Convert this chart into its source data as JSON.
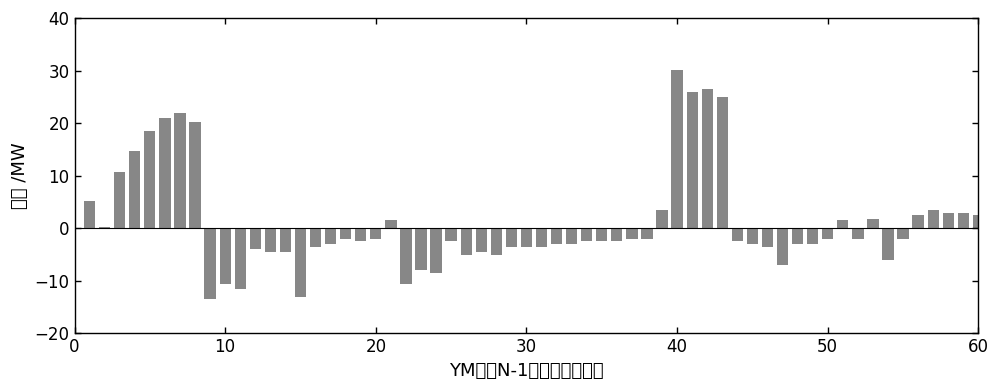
{
  "bar_color": "#878787",
  "xlabel": "YM单线N-1的热稳定临界点",
  "ylabel": "残差 /MW",
  "xlim": [
    0,
    60
  ],
  "ylim": [
    -20,
    40
  ],
  "yticks": [
    -20,
    -10,
    0,
    10,
    20,
    30,
    40
  ],
  "xticks": [
    0,
    10,
    20,
    30,
    40,
    50,
    60
  ],
  "xlabel_fontsize": 13,
  "ylabel_fontsize": 13,
  "tick_fontsize": 12,
  "values": [
    [
      1,
      5.2
    ],
    [
      2,
      0.3
    ],
    [
      3,
      10.8
    ],
    [
      4,
      14.8
    ],
    [
      5,
      18.5
    ],
    [
      6,
      21.0
    ],
    [
      7,
      22.0
    ],
    [
      8,
      20.2
    ],
    [
      9,
      -13.5
    ],
    [
      10,
      -10.5
    ],
    [
      11,
      -11.5
    ],
    [
      12,
      -4.0
    ],
    [
      13,
      -4.5
    ],
    [
      14,
      -4.5
    ],
    [
      15,
      -13.0
    ],
    [
      16,
      -3.5
    ],
    [
      17,
      -3.0
    ],
    [
      18,
      -2.0
    ],
    [
      19,
      -2.5
    ],
    [
      20,
      -2.0
    ],
    [
      21,
      1.5
    ],
    [
      22,
      -10.5
    ],
    [
      23,
      -8.0
    ],
    [
      24,
      -8.5
    ],
    [
      25,
      -2.5
    ],
    [
      26,
      -5.0
    ],
    [
      27,
      -4.5
    ],
    [
      28,
      -5.0
    ],
    [
      29,
      -3.5
    ],
    [
      30,
      -3.5
    ],
    [
      31,
      -3.5
    ],
    [
      32,
      -3.0
    ],
    [
      33,
      -3.0
    ],
    [
      34,
      -2.5
    ],
    [
      35,
      -2.5
    ],
    [
      36,
      -2.5
    ],
    [
      37,
      -2.0
    ],
    [
      38,
      -2.0
    ],
    [
      39,
      3.5
    ],
    [
      40,
      30.2
    ],
    [
      41,
      26.0
    ],
    [
      42,
      26.5
    ],
    [
      43,
      25.0
    ],
    [
      44,
      -2.5
    ],
    [
      45,
      -3.0
    ],
    [
      46,
      -3.5
    ],
    [
      47,
      -7.0
    ],
    [
      48,
      -3.0
    ],
    [
      49,
      -3.0
    ],
    [
      50,
      -2.0
    ],
    [
      51,
      1.5
    ],
    [
      52,
      -2.0
    ],
    [
      53,
      1.8
    ],
    [
      54,
      -6.0
    ],
    [
      55,
      -2.0
    ],
    [
      56,
      2.5
    ],
    [
      57,
      3.5
    ],
    [
      58,
      3.0
    ],
    [
      59,
      3.0
    ],
    [
      60,
      2.5
    ]
  ]
}
